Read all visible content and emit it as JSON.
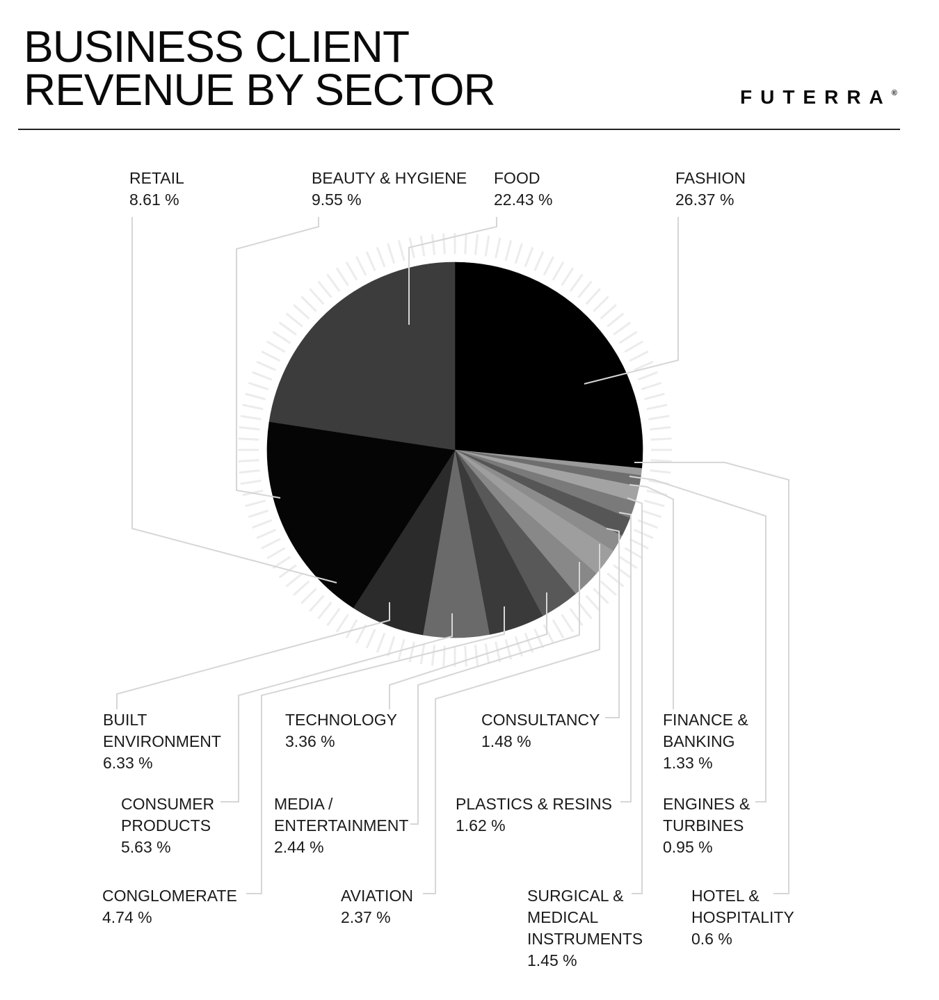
{
  "header": {
    "title_line1": "BUSINESS CLIENT",
    "title_line2": "REVENUE BY SECTOR",
    "brand": "FUTERRA",
    "brand_mark": "®"
  },
  "chart_data": {
    "type": "pie",
    "title": "BUSINESS CLIENT REVENUE BY SECTOR",
    "slices": [
      {
        "name": "FASHION",
        "lines": [
          "FASHION"
        ],
        "value": 26.37,
        "value_label": "26.37 %",
        "color": "#000000"
      },
      {
        "name": "HOTEL & HOSPITALITY",
        "lines": [
          "HOTEL &",
          "HOSPITALITY"
        ],
        "value": 0.6,
        "value_label": "0.6 %",
        "color": "#9a9a9a"
      },
      {
        "name": "ENGINES & TURBINES",
        "lines": [
          "ENGINES &",
          "TURBINES"
        ],
        "value": 0.95,
        "value_label": "0.95 %",
        "color": "#6e6e6e"
      },
      {
        "name": "FINANCE & BANKING",
        "lines": [
          "FINANCE &",
          "BANKING"
        ],
        "value": 1.33,
        "value_label": "1.33 %",
        "color": "#a3a3a3"
      },
      {
        "name": "SURGICAL & MEDICAL INSTRUMENTS",
        "lines": [
          "SURGICAL &",
          "MEDICAL",
          "INSTRUMENTS"
        ],
        "value": 1.45,
        "value_label": "1.45 %",
        "color": "#7a7a7a"
      },
      {
        "name": "PLASTICS & RESINS",
        "lines": [
          "PLASTICS & RESINS"
        ],
        "value": 1.62,
        "value_label": "1.62 %",
        "color": "#565656"
      },
      {
        "name": "CONSULTANCY",
        "lines": [
          "CONSULTANCY"
        ],
        "value": 1.48,
        "value_label": "1.48 %",
        "color": "#8c8c8c"
      },
      {
        "name": "AVIATION",
        "lines": [
          "AVIATION"
        ],
        "value": 2.37,
        "value_label": "2.37 %",
        "color": "#9e9e9e"
      },
      {
        "name": "MEDIA / ENTERTAINMENT",
        "lines": [
          "MEDIA /",
          "ENTERTAINMENT"
        ],
        "value": 2.44,
        "value_label": "2.44 %",
        "color": "#888888"
      },
      {
        "name": "TECHNOLOGY",
        "lines": [
          "TECHNOLOGY"
        ],
        "value": 3.36,
        "value_label": "3.36 %",
        "color": "#585858"
      },
      {
        "name": "CONGLOMERATE",
        "lines": [
          "CONGLOMERATE"
        ],
        "value": 4.74,
        "value_label": "4.74 %",
        "color": "#3a3a3a"
      },
      {
        "name": "CONSUMER PRODUCTS",
        "lines": [
          "CONSUMER",
          "PRODUCTS"
        ],
        "value": 5.63,
        "value_label": "5.63 %",
        "color": "#6a6a6a"
      },
      {
        "name": "BUILT ENVIRONMENT",
        "lines": [
          "BUILT",
          "ENVIRONMENT"
        ],
        "value": 6.33,
        "value_label": "6.33 %",
        "color": "#2b2b2b"
      },
      {
        "name": "RETAIL",
        "lines": [
          "RETAIL"
        ],
        "value": 8.61,
        "value_label": "8.61 %",
        "color": "#050505"
      },
      {
        "name": "BEAUTY & HYGIENE",
        "lines": [
          "BEAUTY & HYGIENE"
        ],
        "value": 9.55,
        "value_label": "9.55 %",
        "color": "#050505"
      },
      {
        "name": "FOOD",
        "lines": [
          "FOOD"
        ],
        "value": 22.43,
        "value_label": "22.43 %",
        "color": "#3c3c3c"
      }
    ]
  }
}
